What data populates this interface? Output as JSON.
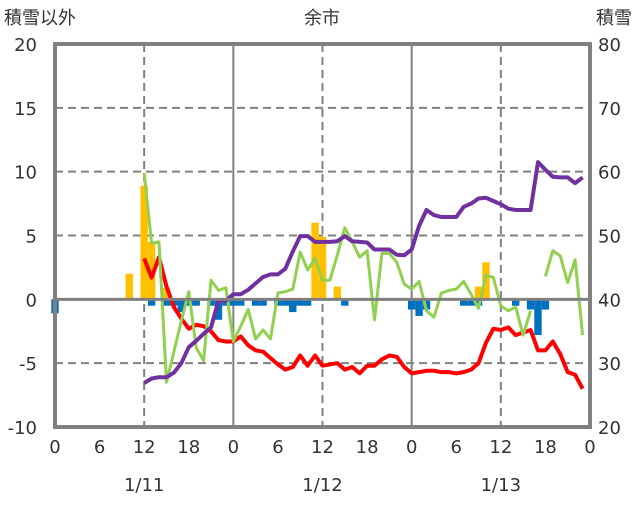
{
  "chart_data": {
    "type": "line",
    "title": "余市",
    "left_axis_label": "積雪以外",
    "right_axis_label": "積雪",
    "left_ylim": [
      -10,
      20
    ],
    "right_ylim": [
      20,
      80
    ],
    "left_ticks": [
      "20",
      "15",
      "10",
      "5",
      "0",
      "-5",
      "-10"
    ],
    "right_ticks": [
      "80",
      "70",
      "60",
      "50",
      "40",
      "30",
      "20"
    ],
    "x_hours_range": [
      0,
      72
    ],
    "x_tick_labels": [
      "0",
      "6",
      "12",
      "18",
      "0",
      "6",
      "12",
      "18",
      "0",
      "6",
      "12",
      "18",
      "0"
    ],
    "date_labels": [
      "1/11",
      "1/12",
      "1/13"
    ],
    "grid": true,
    "colors": {
      "red": "#FF0000",
      "purple": "#7030A0",
      "green": "#92D050",
      "yellow": "#FFC000",
      "blue": "#0070C0",
      "grid": "#808080"
    },
    "series": [
      {
        "key": "red-line",
        "axis": "left",
        "start_hour": 12,
        "values": [
          3.2,
          1.7,
          3.3,
          1.0,
          -0.6,
          -1.5,
          -2.3,
          -2.0,
          -2.1,
          -2.5,
          -3.2,
          -3.3,
          -3.3,
          -2.9,
          -3.6,
          -4.0,
          -4.1,
          -4.6,
          -5.1,
          -5.5,
          -5.3,
          -4.4,
          -5.2,
          -4.4,
          -5.2,
          -5.1,
          -5.0,
          -5.5,
          -5.3,
          -5.8,
          -5.2,
          -5.2,
          -4.7,
          -4.4,
          -4.5,
          -5.3,
          -5.8,
          -5.7,
          -5.6,
          -5.6,
          -5.7,
          -5.7,
          -5.8,
          -5.7,
          -5.5,
          -5.0,
          -3.4,
          -2.3,
          -2.4,
          -2.2,
          -2.8,
          -2.6,
          -2.4,
          -4.0,
          -4.0,
          -3.3,
          -4.3,
          -5.7,
          -5.9,
          -7.0
        ]
      },
      {
        "key": "green-line",
        "axis": "left",
        "start_hour": 12,
        "values": [
          9.9,
          4.4,
          4.5,
          -6.5,
          -4.1,
          -1.7,
          0.6,
          -3.8,
          -4.8,
          1.5,
          0.7,
          0.9,
          -3.3,
          -2.1,
          -0.8,
          -3.1,
          -2.4,
          -3.1,
          0.5,
          0.6,
          0.8,
          3.7,
          2.3,
          3.2,
          1.5,
          1.5,
          3.5,
          5.6,
          4.5,
          3.3,
          3.8,
          -1.6,
          3.6,
          3.6,
          2.9,
          1.2,
          0.8,
          1.4,
          -0.9,
          -1.4,
          0.5,
          0.7,
          0.8,
          1.4,
          0.4,
          -0.7,
          1.9,
          1.7,
          -0.5,
          -0.9,
          -0.6,
          -2.8,
          -0.9,
          null,
          1.8,
          3.8,
          3.4,
          1.3,
          3.1,
          -2.8
        ]
      },
      {
        "key": "purple-line",
        "axis": "right",
        "start_hour": 12,
        "values": [
          26.9,
          27.6,
          27.8,
          27.8,
          28.5,
          30.0,
          32.5,
          33.5,
          34.6,
          35.6,
          39.8,
          39.8,
          40.8,
          40.8,
          41.5,
          42.5,
          43.5,
          43.9,
          43.9,
          44.8,
          47.5,
          49.9,
          49.9,
          49.0,
          49.0,
          49.0,
          49.1,
          49.9,
          49.1,
          49.0,
          48.9,
          47.8,
          47.8,
          47.8,
          47.0,
          46.9,
          47.8,
          51.5,
          54.0,
          53.2,
          52.9,
          52.9,
          52.9,
          54.5,
          55.0,
          55.8,
          55.9,
          55.4,
          54.9,
          54.2,
          54.0,
          54.0,
          54.0,
          61.5,
          60.3,
          59.2,
          59.1,
          59.1,
          58.2,
          59.1
        ]
      }
    ],
    "bars": [
      {
        "key": "yellow-bar",
        "axis": "left",
        "points": [
          [
            10,
            2.0
          ],
          [
            12,
            8.9
          ],
          [
            13,
            4.5
          ],
          [
            15,
            0.9
          ],
          [
            35,
            6.0
          ],
          [
            36,
            4.9
          ],
          [
            38,
            1.0
          ],
          [
            57,
            1.0
          ],
          [
            58,
            2.9
          ]
        ]
      },
      {
        "key": "blue-bar",
        "axis": "left",
        "points": [
          [
            0,
            -1.1
          ],
          [
            13,
            -0.5
          ],
          [
            15,
            -0.5
          ],
          [
            16,
            -0.5
          ],
          [
            17,
            -1.0
          ],
          [
            18,
            -0.5
          ],
          [
            19,
            -0.5
          ],
          [
            21,
            -0.5
          ],
          [
            22,
            -1.6
          ],
          [
            23,
            -0.5
          ],
          [
            24,
            -0.5
          ],
          [
            25,
            -0.5
          ],
          [
            27,
            -0.5
          ],
          [
            28,
            -0.5
          ],
          [
            30,
            -0.5
          ],
          [
            31,
            -0.5
          ],
          [
            32,
            -1.0
          ],
          [
            33,
            -0.5
          ],
          [
            34,
            -0.5
          ],
          [
            39,
            -0.5
          ],
          [
            48,
            -0.8
          ],
          [
            49,
            -1.3
          ],
          [
            50,
            -0.8
          ],
          [
            55,
            -0.5
          ],
          [
            56,
            -0.5
          ],
          [
            57,
            -0.5
          ],
          [
            62,
            -0.5
          ],
          [
            64,
            -0.8
          ],
          [
            65,
            -2.8
          ],
          [
            66,
            -0.8
          ]
        ]
      }
    ]
  }
}
